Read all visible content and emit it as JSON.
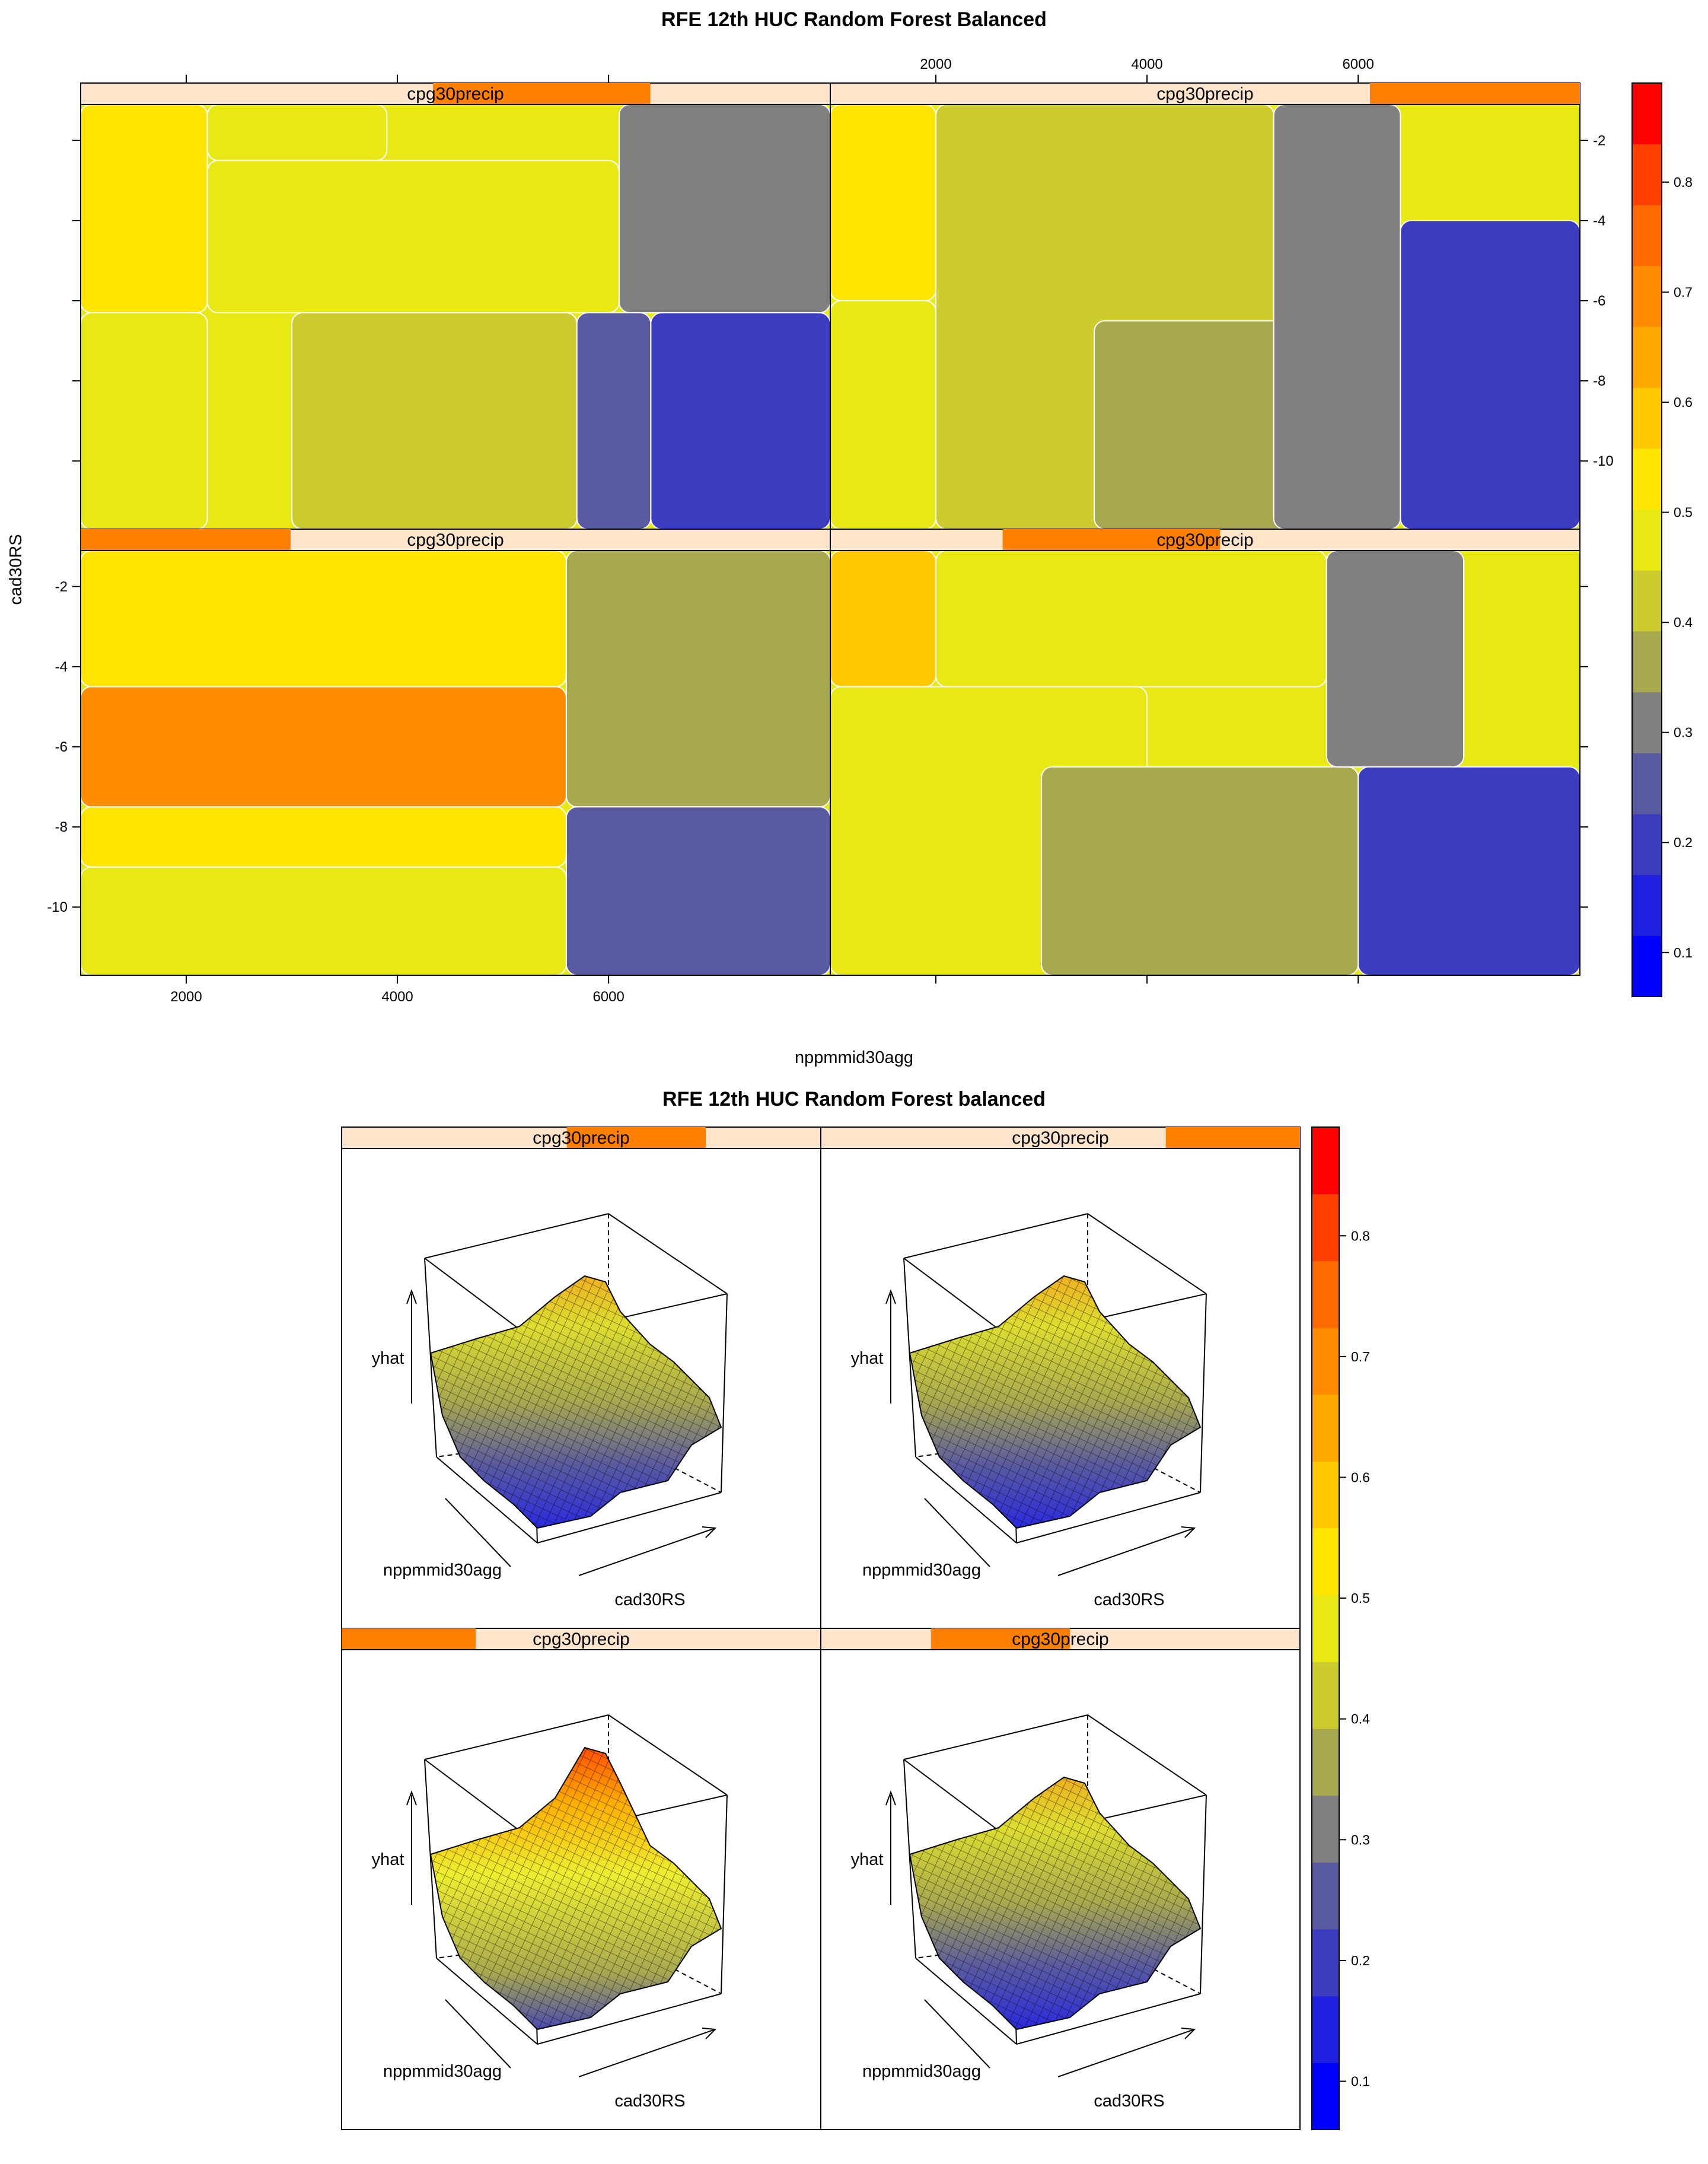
{
  "chart_data": [
    {
      "type": "heatmap",
      "title": "RFE 12th HUC Random Forest Balanced",
      "xlabel": "nppmmid30agg",
      "ylabel": "cad30RS",
      "xlim": [
        1000,
        8100
      ],
      "ylim": [
        -11.7,
        -1.1
      ],
      "x_ticks": [
        2000,
        4000,
        6000
      ],
      "y_ticks": [
        -2,
        -4,
        -6,
        -8,
        -10
      ],
      "strip_label": "cpg30precip",
      "colorbar": {
        "min": 0.06,
        "max": 0.89,
        "ticks": [
          0.1,
          0.2,
          0.3,
          0.4,
          0.5,
          0.6,
          0.7,
          0.8
        ],
        "colors": [
          "#0000ff",
          "#2020e0",
          "#3c3cc0",
          "#5a5aa0",
          "#808080",
          "#a8a850",
          "#cccc30",
          "#e8e814",
          "#ffe600",
          "#ffc800",
          "#ffa800",
          "#ff8c00",
          "#ff6a00",
          "#ff4000",
          "#ff0000"
        ]
      },
      "panels": [
        {
          "position": "top-left",
          "strip_range": [
            0.47,
            0.76
          ],
          "regions": [
            {
              "level": 0.55,
              "x": [
                1000,
                2200
              ],
              "y": [
                -1.1,
                -6.3
              ]
            },
            {
              "level": 0.45,
              "x": [
                1000,
                2200
              ],
              "y": [
                -6.3,
                -11.7
              ]
            },
            {
              "level": 0.5,
              "x": [
                2200,
                3900
              ],
              "y": [
                -1.1,
                -2.5
              ]
            },
            {
              "level": 0.45,
              "x": [
                2200,
                6100
              ],
              "y": [
                -2.5,
                -6.3
              ]
            },
            {
              "level": 0.4,
              "x": [
                3000,
                5700
              ],
              "y": [
                -6.3,
                -11.7
              ]
            },
            {
              "level": 0.3,
              "x": [
                6100,
                8100
              ],
              "y": [
                -1.1,
                -6.3
              ]
            },
            {
              "level": 0.25,
              "x": [
                5700,
                6400
              ],
              "y": [
                -6.3,
                -11.7
              ]
            },
            {
              "level": 0.2,
              "x": [
                6400,
                8100
              ],
              "y": [
                -6.3,
                -11.7
              ]
            }
          ]
        },
        {
          "position": "top-right",
          "strip_range": [
            0.72,
            1.0
          ],
          "regions": [
            {
              "level": 0.55,
              "x": [
                1000,
                2000
              ],
              "y": [
                -1.1,
                -6.0
              ]
            },
            {
              "level": 0.45,
              "x": [
                1000,
                2000
              ],
              "y": [
                -6.0,
                -11.7
              ]
            },
            {
              "level": 0.4,
              "x": [
                2000,
                5200
              ],
              "y": [
                -1.1,
                -11.7
              ]
            },
            {
              "level": 0.35,
              "x": [
                3500,
                5700
              ],
              "y": [
                -6.5,
                -11.7
              ]
            },
            {
              "level": 0.3,
              "x": [
                5200,
                6400
              ],
              "y": [
                -1.1,
                -11.7
              ]
            },
            {
              "level": 0.2,
              "x": [
                6400,
                8100
              ],
              "y": [
                -4.0,
                -11.7
              ]
            }
          ]
        },
        {
          "position": "bottom-left",
          "strip_range": [
            0.0,
            0.28
          ],
          "regions": [
            {
              "level": 0.55,
              "x": [
                1000,
                5600
              ],
              "y": [
                -1.1,
                -4.5
              ]
            },
            {
              "level": 0.7,
              "x": [
                1000,
                5600
              ],
              "y": [
                -4.5,
                -7.5
              ]
            },
            {
              "level": 0.55,
              "x": [
                1000,
                5600
              ],
              "y": [
                -7.5,
                -9.0
              ]
            },
            {
              "level": 0.45,
              "x": [
                1000,
                5600
              ],
              "y": [
                -9.0,
                -11.7
              ]
            },
            {
              "level": 0.35,
              "x": [
                5600,
                8100
              ],
              "y": [
                -1.1,
                -7.5
              ]
            },
            {
              "level": 0.25,
              "x": [
                5600,
                8100
              ],
              "y": [
                -7.5,
                -11.7
              ]
            }
          ]
        },
        {
          "position": "bottom-right",
          "strip_range": [
            0.23,
            0.52
          ],
          "regions": [
            {
              "level": 0.6,
              "x": [
                1000,
                2000
              ],
              "y": [
                -1.1,
                -4.5
              ]
            },
            {
              "level": 0.5,
              "x": [
                2000,
                5700
              ],
              "y": [
                -1.1,
                -4.5
              ]
            },
            {
              "level": 0.45,
              "x": [
                1000,
                4000
              ],
              "y": [
                -4.5,
                -11.7
              ]
            },
            {
              "level": 0.35,
              "x": [
                3000,
                6000
              ],
              "y": [
                -6.5,
                -11.7
              ]
            },
            {
              "level": 0.3,
              "x": [
                5700,
                7000
              ],
              "y": [
                -1.1,
                -6.5
              ]
            },
            {
              "level": 0.2,
              "x": [
                6000,
                8100
              ],
              "y": [
                -6.5,
                -11.7
              ]
            }
          ]
        }
      ]
    },
    {
      "type": "surface",
      "title": "RFE 12th HUC Random Forest balanced",
      "zlabel": "yhat",
      "xlabel": "nppmmid30agg",
      "ylabel": "cad30RS",
      "strip_label": "cpg30precip",
      "colorbar": {
        "min": 0.06,
        "max": 0.89,
        "ticks": [
          0.1,
          0.2,
          0.3,
          0.4,
          0.5,
          0.6,
          0.7,
          0.8
        ]
      },
      "panels": [
        {
          "position": "top-left",
          "strip_range": [
            0.47,
            0.76
          ],
          "peak_level": 0.6
        },
        {
          "position": "top-right",
          "strip_range": [
            0.72,
            1.0
          ],
          "peak_level": 0.55
        },
        {
          "position": "bottom-left",
          "strip_range": [
            0.0,
            0.28
          ],
          "peak_level": 0.75
        },
        {
          "position": "bottom-right",
          "strip_range": [
            0.23,
            0.52
          ],
          "peak_level": 0.6
        }
      ]
    }
  ]
}
